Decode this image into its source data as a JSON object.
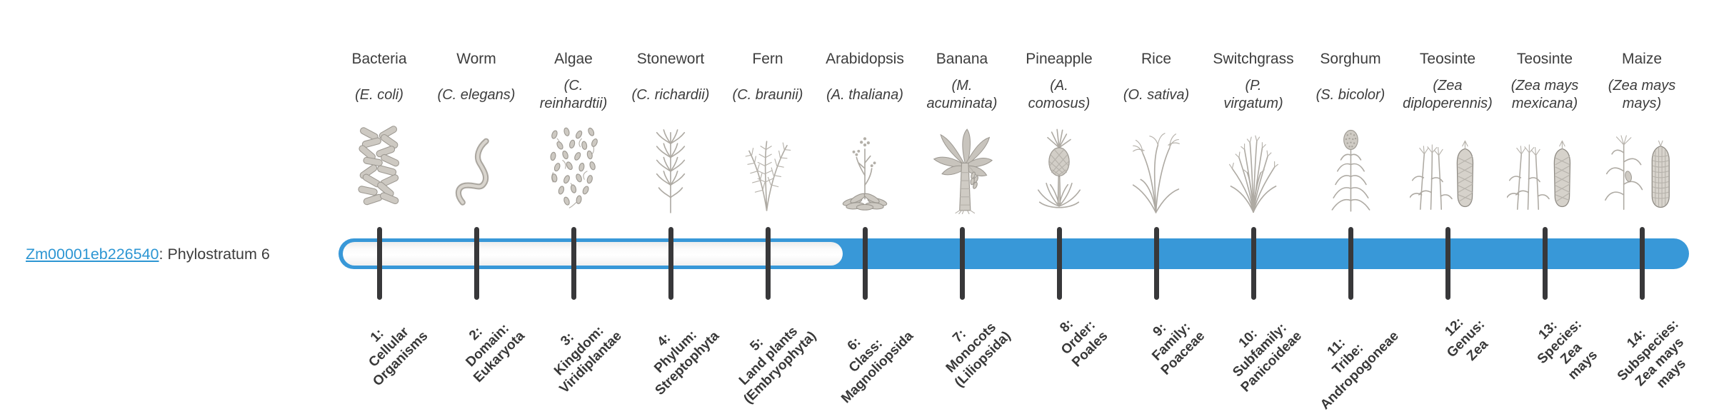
{
  "figure": {
    "gene": {
      "id": "Zm00001eb226540",
      "suffix": ": Phylostratum 6",
      "phylostratum": 6
    },
    "colors": {
      "bar_blue": "#3898d8",
      "link_blue": "#2d96d3",
      "tick_dark": "#38383a",
      "text_dark": "#3d3d3d",
      "art_gray": "#b5b1aa"
    },
    "organisms": [
      {
        "name": "Bacteria",
        "species": "(E. coli)",
        "icon": "bacteria",
        "stratum_label": "1:\nCellular\nOrganisms"
      },
      {
        "name": "Worm",
        "species": "(C. elegans)",
        "icon": "worm",
        "stratum_label": "2:\nDomain:\nEukaryota"
      },
      {
        "name": "Algae",
        "species": "(C.\nreinhardtii)",
        "icon": "algae",
        "stratum_label": "3:\nKingdom:\nViridiplantae"
      },
      {
        "name": "Stonewort",
        "species": "(C. richardii)",
        "icon": "stonewort",
        "stratum_label": "4:\nPhylum:\nStreptophyta"
      },
      {
        "name": "Fern",
        "species": "(C. braunii)",
        "icon": "fern",
        "stratum_label": "5:\nLand plants\n(Embryophyta)"
      },
      {
        "name": "Arabidopsis",
        "species": "(A. thaliana)",
        "icon": "arabidopsis",
        "stratum_label": "6:\nClass:\nMagnoliopsida"
      },
      {
        "name": "Banana",
        "species": "(M.\nacuminata)",
        "icon": "banana",
        "stratum_label": "7:\nMonocots\n(Liliopsida)"
      },
      {
        "name": "Pineapple",
        "species": "(A.\ncomosus)",
        "icon": "pineapple",
        "stratum_label": "8:\nOrder:\nPoales"
      },
      {
        "name": "Rice",
        "species": "(O. sativa)",
        "icon": "rice",
        "stratum_label": "9:\nFamily:\nPoaceae"
      },
      {
        "name": "Switchgrass",
        "species": "(P.\nvirgatum)",
        "icon": "switchgrass",
        "stratum_label": "10:\nSubfamily:\nPanicoideae"
      },
      {
        "name": "Sorghum",
        "species": "(S. bicolor)",
        "icon": "sorghum",
        "stratum_label": "11:\nTribe:\nAndropogoneae"
      },
      {
        "name": "Teosinte",
        "species": "(Zea\ndiploperennis)",
        "icon": "teosinte",
        "stratum_label": "12:\nGenus:\nZea"
      },
      {
        "name": "Teosinte",
        "species": "(Zea mays\nmexicana)",
        "icon": "teosinte",
        "stratum_label": "13:\nSpecies:\nZea\nmays"
      },
      {
        "name": "Maize",
        "species": "(Zea mays\nmays)",
        "icon": "maize",
        "stratum_label": "14:\nSubspecies:\nZea mays\nmays"
      }
    ]
  }
}
